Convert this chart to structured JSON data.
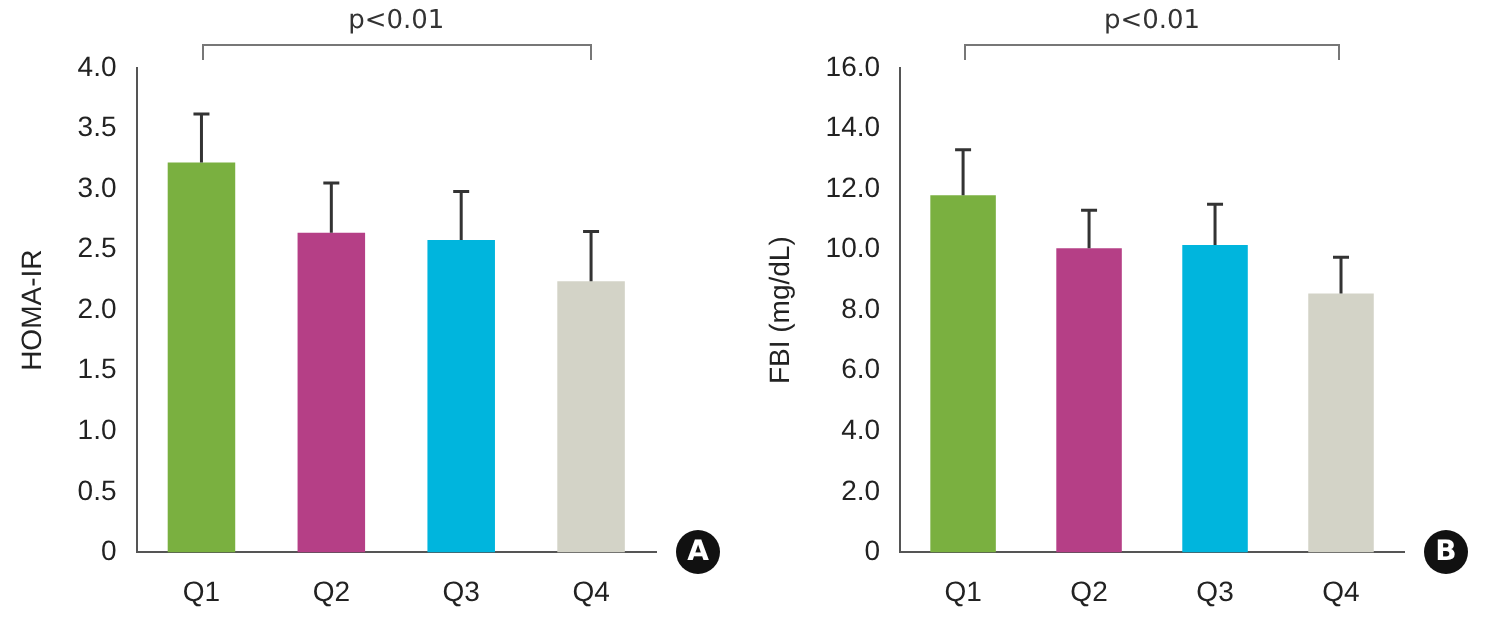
{
  "chart_data": [
    {
      "type": "bar",
      "ylabel": "HOMA-IR",
      "categories": [
        "Q1",
        "Q2",
        "Q3",
        "Q4"
      ],
      "values": [
        3.22,
        2.64,
        2.58,
        2.24
      ],
      "colors": [
        "#7ab040",
        "#b53f86",
        "#00b5dd",
        "#d3d3c7"
      ],
      "errors": [
        [
          3.22,
          3.62
        ],
        [
          2.64,
          3.05
        ],
        [
          2.58,
          2.98
        ],
        [
          2.24,
          2.65
        ]
      ],
      "ylim": [
        0,
        4
      ],
      "yticks": [
        0,
        {
          "value": 0.5,
          "label": "0.5"
        },
        {
          "value": 1,
          "label": "1.0"
        },
        {
          "value": 1.5,
          "label": "1.5"
        },
        {
          "value": 2,
          "label": "2.0"
        },
        {
          "value": 2.5,
          "label": "2.5"
        },
        {
          "value": 3,
          "label": "3.0"
        },
        {
          "value": 3.5,
          "label": "3.5"
        },
        {
          "value": 4,
          "label": "4.0"
        }
      ],
      "annotations": [
        "p<0.01",
        "A"
      ]
    },
    {
      "type": "bar",
      "ylabel": "FBI (mg/dL)",
      "categories": [
        "Q1",
        "Q2",
        "Q3",
        "Q4"
      ],
      "values": [
        11.8,
        10.05,
        10.15,
        8.55
      ],
      "colors": [
        "#7ab040",
        "#b53f86",
        "#00b5dd",
        "#d3d3c7"
      ],
      "errors": [
        [
          11.8,
          13.3
        ],
        [
          10.05,
          11.3
        ],
        [
          10.15,
          11.5
        ],
        [
          8.55,
          9.75
        ]
      ],
      "ylim": [
        0,
        16
      ],
      "yticks": [
        0,
        {
          "value": 2,
          "label": "2.0"
        },
        {
          "value": 4,
          "label": "4.0"
        },
        {
          "value": 6,
          "label": "6.0"
        },
        {
          "value": 8,
          "label": "8.0"
        },
        {
          "value": 10,
          "label": "10.0"
        },
        {
          "value": 12,
          "label": "12.0"
        },
        {
          "value": 14,
          "label": "14.0"
        },
        {
          "value": 16,
          "label": "16.0"
        }
      ],
      "annotations": [
        "p<0.01",
        "B"
      ]
    }
  ]
}
